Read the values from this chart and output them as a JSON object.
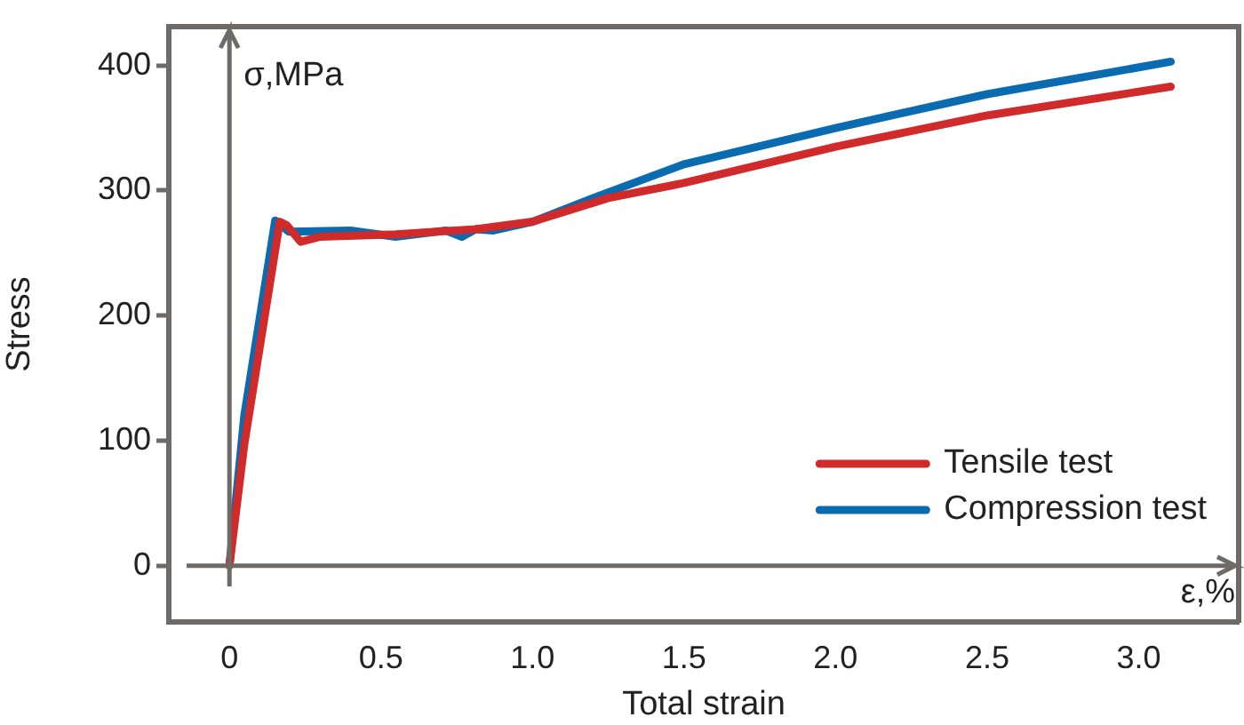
{
  "chart_data": {
    "type": "line",
    "xlabel": "Total strain",
    "ylabel": "Stress",
    "xlim": [
      -0.2,
      3.33
    ],
    "ylim": [
      -45,
      431
    ],
    "xticks": [
      {
        "value": 0,
        "label": "0"
      },
      0.5,
      {
        "value": 1,
        "label": "1.0"
      },
      1.5,
      {
        "value": 2,
        "label": "2.0"
      },
      2.5,
      {
        "value": 3,
        "label": "3.0"
      }
    ],
    "yticks": [
      0,
      100,
      200,
      300,
      400
    ],
    "grid": false,
    "legend": "bottom right",
    "marker": "none",
    "line_style": "solid",
    "ref_lines": [
      {
        "axis": "y",
        "value": 0,
        "label": "ε,%",
        "color": "#6d6a68"
      },
      {
        "axis": "x",
        "value": 0,
        "label": "σ,MPa",
        "color": "#6d6a68"
      }
    ],
    "series": [
      {
        "name": "Tensile test",
        "color": "#d02a2a",
        "x": [
          0,
          0.049,
          0.166,
          0.19,
          0.235,
          0.3,
          0.55,
          0.812,
          1.0,
          1.25,
          1.5,
          2.0,
          2.5,
          3.106
        ],
        "values": [
          0,
          97,
          275,
          272,
          259,
          263,
          265,
          269,
          275,
          294,
          306,
          335,
          360,
          383
        ]
      },
      {
        "name": "Compression test",
        "color": "#0a6bb0",
        "x": [
          0,
          0.049,
          0.151,
          0.196,
          0.4,
          0.548,
          0.714,
          0.767,
          0.812,
          0.871,
          1.0,
          1.2,
          1.5,
          2.0,
          2.5,
          3.106
        ],
        "values": [
          0,
          120,
          276,
          267,
          268,
          263,
          268,
          263,
          269,
          268,
          275,
          294,
          321,
          350,
          377,
          403
        ]
      }
    ]
  }
}
